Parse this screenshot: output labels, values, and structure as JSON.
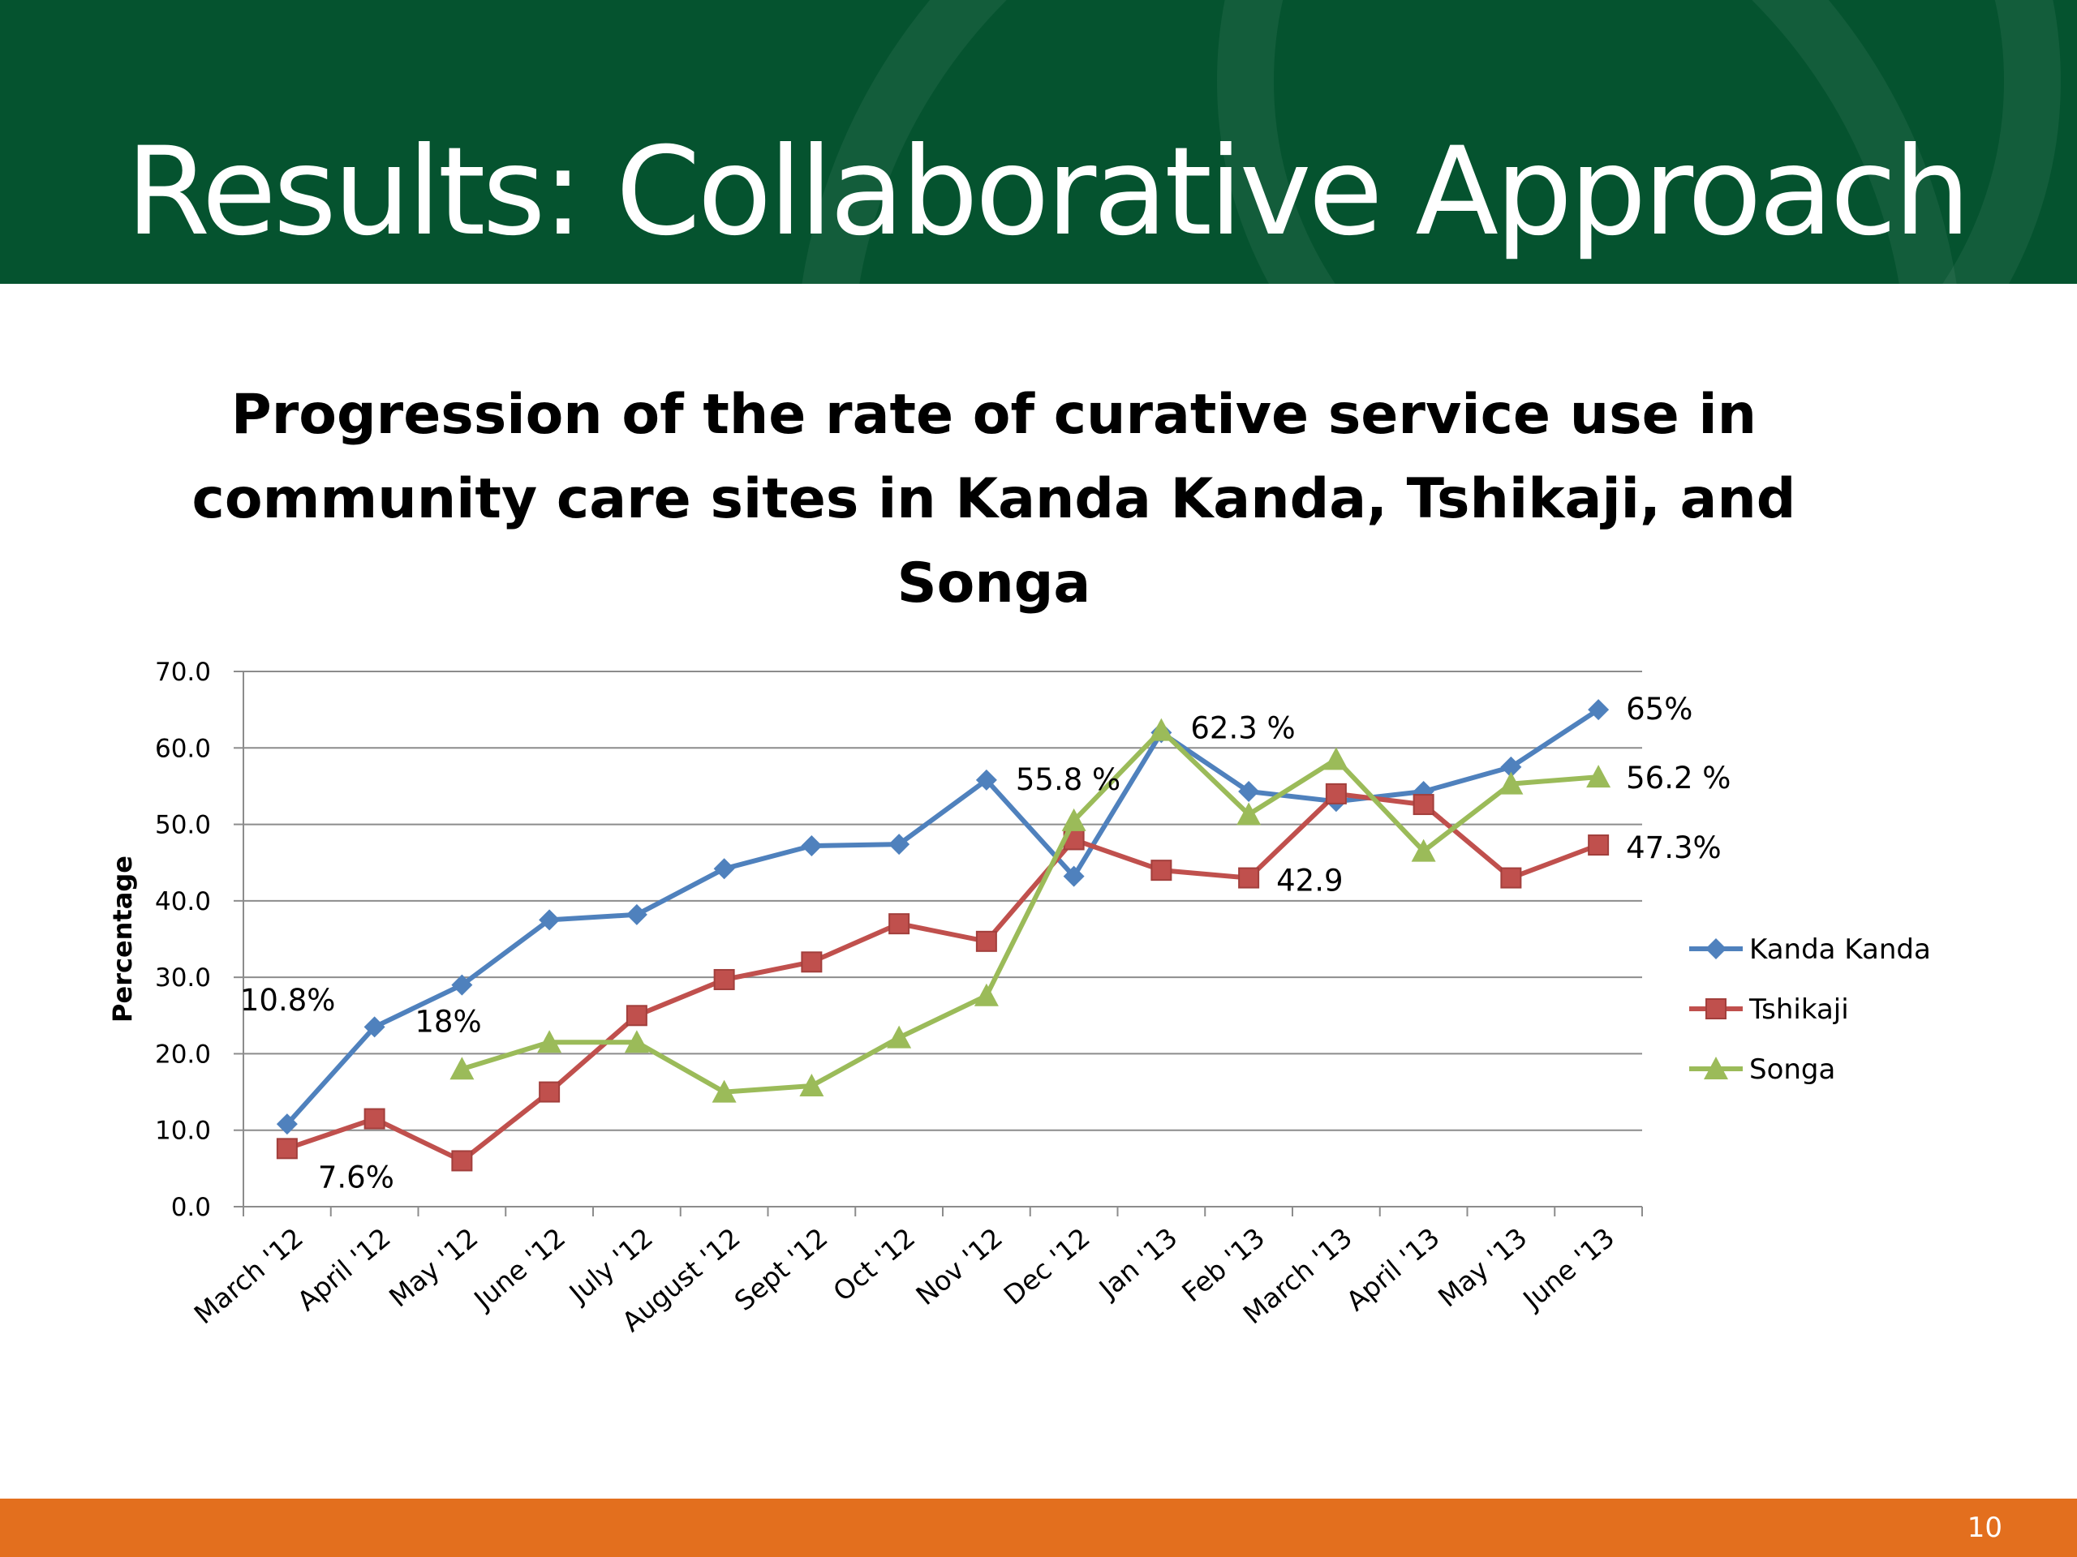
{
  "slide": {
    "title": "Results: Collaborative Approach",
    "page_number": "10"
  },
  "colors": {
    "header": "#05532f",
    "footer": "#e36f1e",
    "kanda": "#4f81bd",
    "tshikaji": "#c0504d",
    "songa": "#9bbb59"
  },
  "chart_data": {
    "type": "line",
    "title": "Progression of the rate of curative service use in community care sites in Kanda Kanda, Tshikaji, and Songa",
    "ylabel": "Percentage",
    "xlabel": "",
    "ylim": [
      0,
      70
    ],
    "yticks": [
      "0.0",
      "10.0",
      "20.0",
      "30.0",
      "40.0",
      "50.0",
      "60.0",
      "70.0"
    ],
    "grid": true,
    "legend_position": "right",
    "categories": [
      "March '12",
      "April '12",
      "May '12",
      "June '12",
      "July '12",
      "August '12",
      "Sept '12",
      "Oct '12",
      "Nov '12",
      "Dec '12",
      "Jan '13",
      "Feb '13",
      "March '13",
      "April '13",
      "May '13",
      "June '13"
    ],
    "series": [
      {
        "name": "Kanda Kanda",
        "marker": "diamond",
        "values": [
          10.8,
          23.5,
          29.0,
          37.5,
          38.2,
          44.2,
          47.2,
          47.4,
          55.8,
          43.2,
          62.0,
          54.3,
          53.0,
          54.3,
          57.5,
          65.0
        ]
      },
      {
        "name": "Tshikaji",
        "marker": "square",
        "values": [
          7.6,
          11.5,
          6.0,
          15.0,
          25.0,
          29.7,
          32.0,
          37.0,
          34.7,
          48.0,
          44.0,
          43.0,
          54.0,
          52.6,
          43.0,
          47.3
        ]
      },
      {
        "name": "Songa",
        "marker": "triangle",
        "values": [
          null,
          null,
          18.0,
          21.5,
          21.5,
          15.0,
          15.8,
          22.1,
          27.6,
          50.5,
          62.3,
          51.3,
          58.5,
          46.5,
          55.3,
          56.2
        ]
      }
    ],
    "annotations": [
      {
        "text": "10.8%",
        "series": 0,
        "index": 0
      },
      {
        "text": "7.6%",
        "series": 1,
        "index": 0
      },
      {
        "text": "18%",
        "series": 2,
        "index": 2
      },
      {
        "text": "55.8 %",
        "series": 0,
        "index": 8
      },
      {
        "text": "62.3 %",
        "series": 2,
        "index": 10
      },
      {
        "text": "42.9",
        "series": 1,
        "index": 11
      },
      {
        "text": "65%",
        "series": 0,
        "index": 15
      },
      {
        "text": "56.2 %",
        "series": 2,
        "index": 15
      },
      {
        "text": "47.3%",
        "series": 1,
        "index": 15
      }
    ]
  }
}
